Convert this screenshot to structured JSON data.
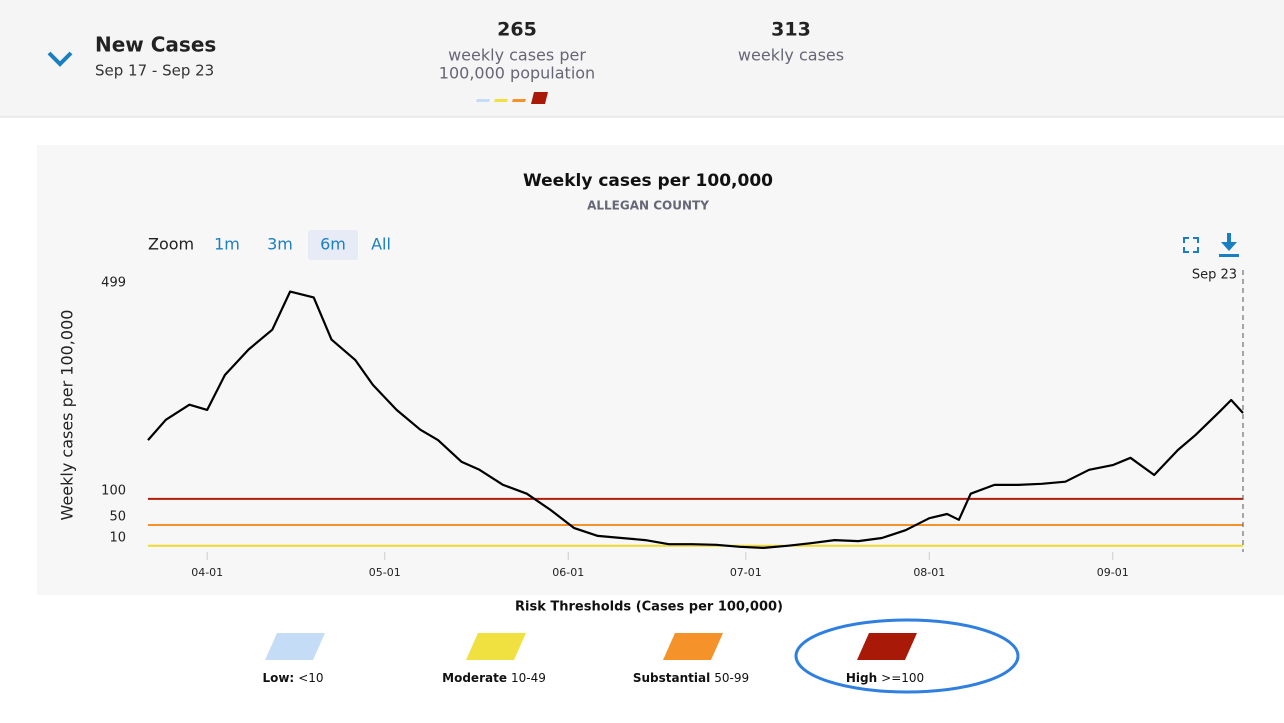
{
  "header": {
    "title": "New Cases",
    "date_range": "Sep 17 - Sep 23",
    "stats": [
      {
        "value": "265",
        "label": "weekly cases per",
        "label2": "100,000 population"
      },
      {
        "value": "313",
        "label": "weekly cases"
      }
    ]
  },
  "chart_data": {
    "type": "line",
    "title": "Weekly cases per 100,000",
    "subtitle": "ALLEGAN COUNTY",
    "zoom_label": "Zoom",
    "zoom_buttons": [
      "1m",
      "3m",
      "6m",
      "All"
    ],
    "zoom_selected": 2,
    "y_label": "Weekly cases per 100,000",
    "crosshair_label": "Sep 23",
    "x": [
      "03-22",
      "03-25",
      "03-29",
      "04-01",
      "04-04",
      "04-08",
      "04-12",
      "04-15",
      "04-19",
      "04-22",
      "04-26",
      "04-29",
      "05-03",
      "05-07",
      "05-10",
      "05-14",
      "05-17",
      "05-21",
      "05-25",
      "05-29",
      "06-02",
      "06-06",
      "06-10",
      "06-14",
      "06-18",
      "06-22",
      "06-26",
      "06-30",
      "07-04",
      "07-08",
      "07-12",
      "07-16",
      "07-20",
      "07-24",
      "07-28",
      "08-01",
      "08-04",
      "08-06",
      "08-08",
      "08-12",
      "08-16",
      "08-20",
      "08-24",
      "08-28",
      "09-01",
      "09-04",
      "09-08",
      "09-12",
      "09-15",
      "09-19",
      "09-21",
      "09-23"
    ],
    "series": [
      {
        "name": "Weekly cases per 100,000",
        "color": "#000000",
        "values": [
          213,
          252,
          281,
          271,
          338,
          387,
          425,
          498,
          487,
          406,
          367,
          319,
          271,
          233,
          213,
          171,
          156,
          127,
          110,
          79,
          44,
          29,
          25,
          21,
          13,
          13,
          12,
          8,
          6,
          10,
          15,
          21,
          19,
          25,
          40,
          63,
          71,
          60,
          110,
          127,
          127,
          129,
          133,
          156,
          165,
          179,
          146,
          194,
          223,
          267,
          290,
          265
        ]
      }
    ],
    "xlim": [
      "03-22",
      "09-23"
    ],
    "xticks": [
      "04-01",
      "05-01",
      "06-01",
      "07-01",
      "08-01",
      "09-01"
    ],
    "ylim": [
      0,
      505
    ],
    "yticks": [
      10,
      50,
      100,
      499
    ],
    "thresholds": [
      {
        "value": 100,
        "color": "#b01e0a"
      },
      {
        "value": 50,
        "color": "#f5922a"
      },
      {
        "value": 10,
        "color": "#f0d832"
      }
    ],
    "legend": {
      "title": "Risk Thresholds (Cases per 100,000)",
      "items": [
        {
          "name": "Low:",
          "range": "<10",
          "color": "#c5dcf7"
        },
        {
          "name": "Moderate",
          "range": "10-49",
          "color": "#f0e040"
        },
        {
          "name": "Substantial",
          "range": "50-99",
          "color": "#f5922a"
        },
        {
          "name": "High",
          "range": ">=100",
          "color": "#a81908"
        }
      ]
    }
  }
}
